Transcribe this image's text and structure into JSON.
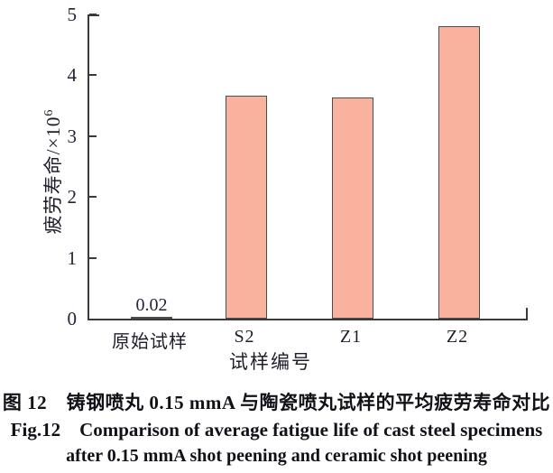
{
  "chart_data": {
    "type": "bar",
    "categories": [
      "原始试样",
      "S2",
      "Z1",
      "Z2"
    ],
    "values": [
      0.02,
      3.67,
      3.64,
      4.8
    ],
    "data_labels": [
      "0.02",
      "",
      "",
      ""
    ],
    "title": "",
    "xlabel": "试样编号",
    "ylabel": "疲劳寿命/×10⁶",
    "ylabel_base": "疲劳寿命/×10",
    "ylabel_exponent": "6",
    "ylim": [
      0,
      5
    ],
    "yticks": [
      0,
      1,
      2,
      3,
      4,
      5
    ],
    "grid": false,
    "legend": "none",
    "bar_fill_color": "#F8B29E",
    "bar_border_color": "#4D4D4D",
    "axis_color": "#3A3A3A"
  },
  "caption": {
    "line1_cn": "图 12　铸钢喷丸 0.15 mmA 与陶瓷喷丸试样的平均疲劳寿命对比",
    "line2_en": "Fig.12　Comparison of average fatigue life of cast steel specimens",
    "line3_en": "after 0.15 mmA shot peening and ceramic shot peening"
  }
}
